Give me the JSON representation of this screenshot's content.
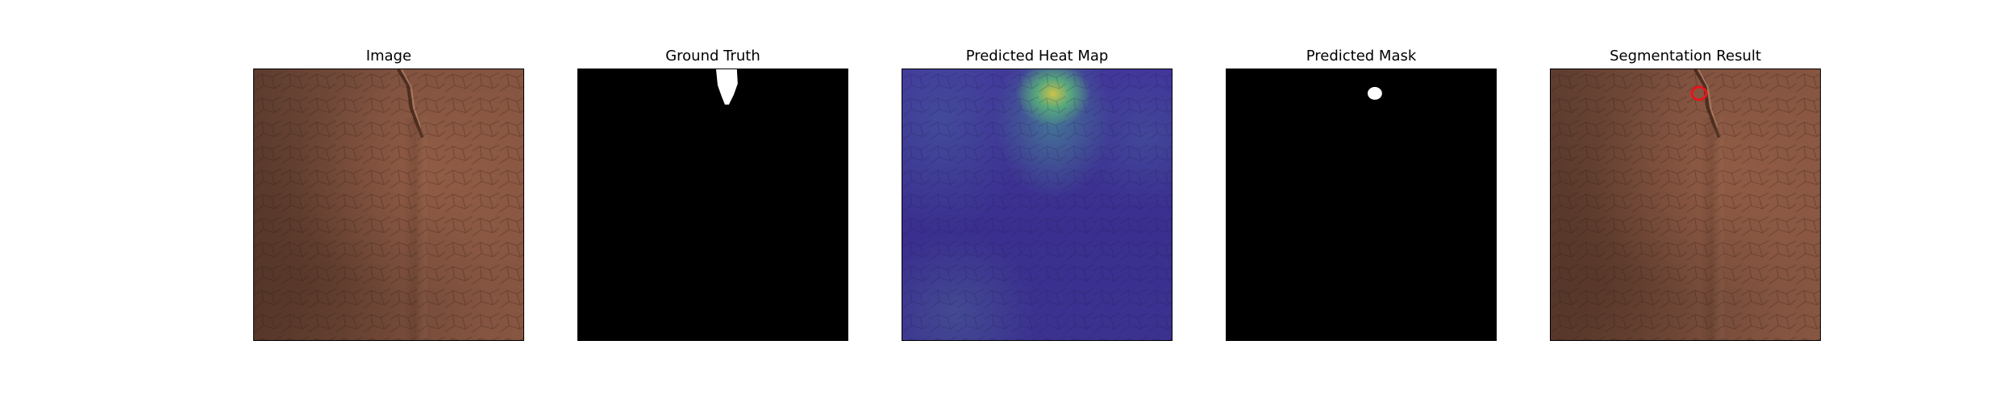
{
  "panels": [
    {
      "title": "Image",
      "kind": "photo"
    },
    {
      "title": "Ground Truth",
      "kind": "mask"
    },
    {
      "title": "Predicted Heat Map",
      "kind": "heatmap"
    },
    {
      "title": "Predicted Mask",
      "kind": "mask"
    },
    {
      "title": "Segmentation Result",
      "kind": "overlay"
    }
  ],
  "colors": {
    "leather": "#7a5140",
    "mask_background": "#000000",
    "mask_foreground": "#ffffff",
    "contour": "#e8141b",
    "heatmap_low": "#3b2f8f",
    "heatmap_high": "#d2c846"
  }
}
